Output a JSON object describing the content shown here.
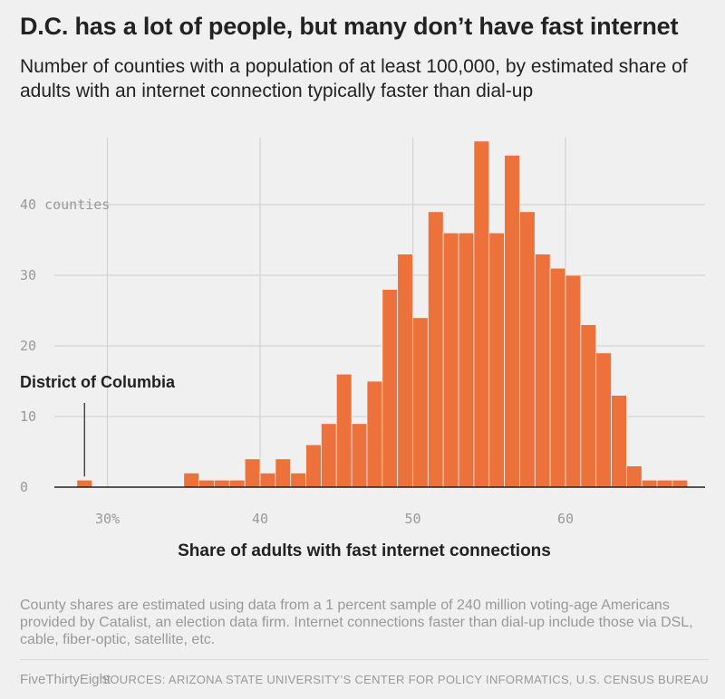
{
  "title": "D.C. has a lot of people, but many don’t have fast internet",
  "subtitle": "Number of counties with a population of at least 100,000, by estimated share of adults with an internet connection typically faster than dial-up",
  "note": "County shares are estimated using data from a 1 percent sample of 240 million voting-age Americans provided by Catalist, an election data firm. Internet connections faster than dial-up include those via DSL, cable, fiber-optic, satellite, etc.",
  "footer": {
    "brand": "FiveThirtyEight",
    "sources": "SOURCES: ARIZONA STATE UNIVERSITY’S CENTER FOR POLICY INFORMATICS, U.S. CENSUS BUREAU"
  },
  "colors": {
    "bar": "#ed713a",
    "grid": "#d3d3d3",
    "axis": "#222222"
  },
  "chart_data": {
    "type": "bar",
    "title": "D.C. has a lot of people, but many don’t have fast internet",
    "xlabel": "Share of adults with fast internet connections",
    "ylabel": "counties",
    "xlim": [
      27,
      69
    ],
    "ylim": [
      0,
      50
    ],
    "bin_width": 1,
    "x_ticks": [
      30,
      40,
      50,
      60
    ],
    "x_tick_labels": [
      "30%",
      "40",
      "50",
      "60"
    ],
    "y_ticks": [
      0,
      10,
      20,
      30,
      40
    ],
    "y_tick_labels": [
      "0",
      "10",
      "20",
      "30",
      "40 counties"
    ],
    "grid": true,
    "bins": [
      {
        "x": 28,
        "value": 1
      },
      {
        "x": 35,
        "value": 2
      },
      {
        "x": 36,
        "value": 1
      },
      {
        "x": 37,
        "value": 1
      },
      {
        "x": 38,
        "value": 1
      },
      {
        "x": 39,
        "value": 4
      },
      {
        "x": 40,
        "value": 2
      },
      {
        "x": 41,
        "value": 4
      },
      {
        "x": 42,
        "value": 2
      },
      {
        "x": 43,
        "value": 6
      },
      {
        "x": 44,
        "value": 9
      },
      {
        "x": 45,
        "value": 16
      },
      {
        "x": 46,
        "value": 9
      },
      {
        "x": 47,
        "value": 15
      },
      {
        "x": 48,
        "value": 28
      },
      {
        "x": 49,
        "value": 33
      },
      {
        "x": 50,
        "value": 24
      },
      {
        "x": 51,
        "value": 39
      },
      {
        "x": 52,
        "value": 36
      },
      {
        "x": 53,
        "value": 36
      },
      {
        "x": 54,
        "value": 49
      },
      {
        "x": 55,
        "value": 36
      },
      {
        "x": 56,
        "value": 47
      },
      {
        "x": 57,
        "value": 39
      },
      {
        "x": 58,
        "value": 33
      },
      {
        "x": 59,
        "value": 31
      },
      {
        "x": 60,
        "value": 30
      },
      {
        "x": 61,
        "value": 23
      },
      {
        "x": 62,
        "value": 19
      },
      {
        "x": 63,
        "value": 13
      },
      {
        "x": 64,
        "value": 3
      },
      {
        "x": 65,
        "value": 1
      },
      {
        "x": 66,
        "value": 1
      },
      {
        "x": 67,
        "value": 1
      }
    ],
    "annotations": [
      {
        "text": "District of Columbia",
        "x": 28.5,
        "y": 1
      }
    ]
  }
}
